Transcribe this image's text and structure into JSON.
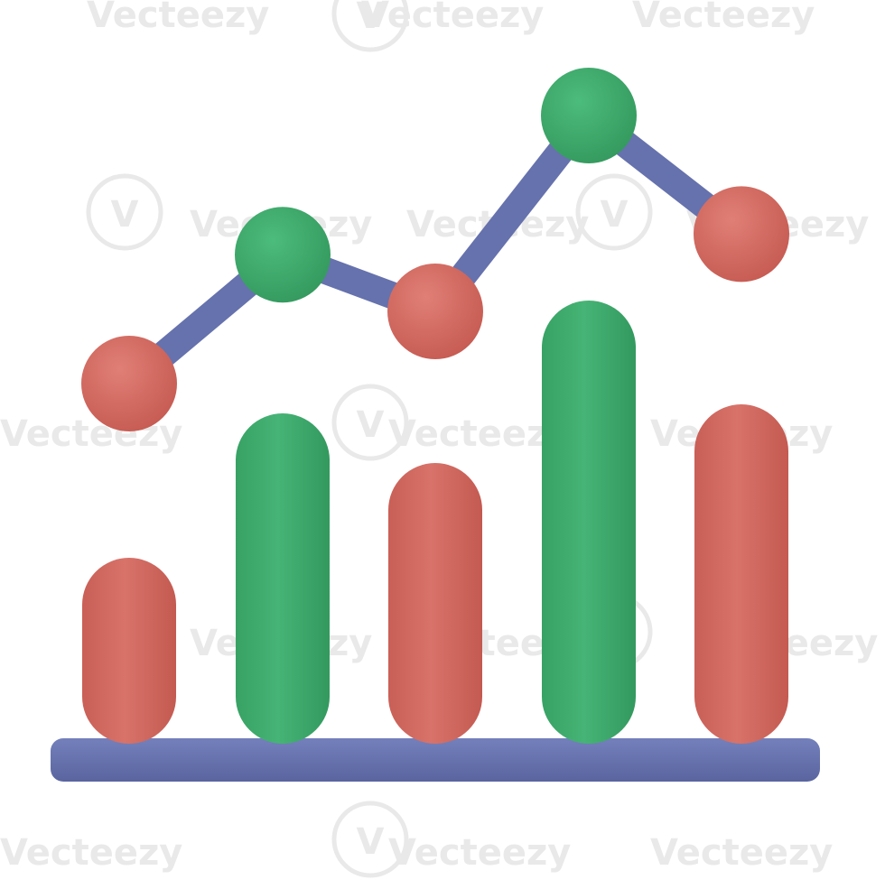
{
  "icon": {
    "name": "bar-and-line-chart-icon",
    "colors": {
      "red": "#d4695f",
      "red_dark": "#bd5249",
      "green": "#3fae6e",
      "green_dark": "#2f9259",
      "blue": "#6672ad",
      "blue_dark": "#535e98",
      "watermark": "#e9e9e9"
    },
    "bars": [
      {
        "level": 0.4,
        "color": "red"
      },
      {
        "level": 0.72,
        "color": "green"
      },
      {
        "level": 0.61,
        "color": "red"
      },
      {
        "level": 0.97,
        "color": "green"
      },
      {
        "level": 0.74,
        "color": "red"
      }
    ],
    "line_points": [
      {
        "level": 0.44,
        "color": "red"
      },
      {
        "level": 0.69,
        "color": "green"
      },
      {
        "level": 0.58,
        "color": "red"
      },
      {
        "level": 0.96,
        "color": "green"
      },
      {
        "level": 0.73,
        "color": "red"
      }
    ]
  },
  "watermark": {
    "text": "Vecteezy",
    "logo_glyph": "V"
  }
}
